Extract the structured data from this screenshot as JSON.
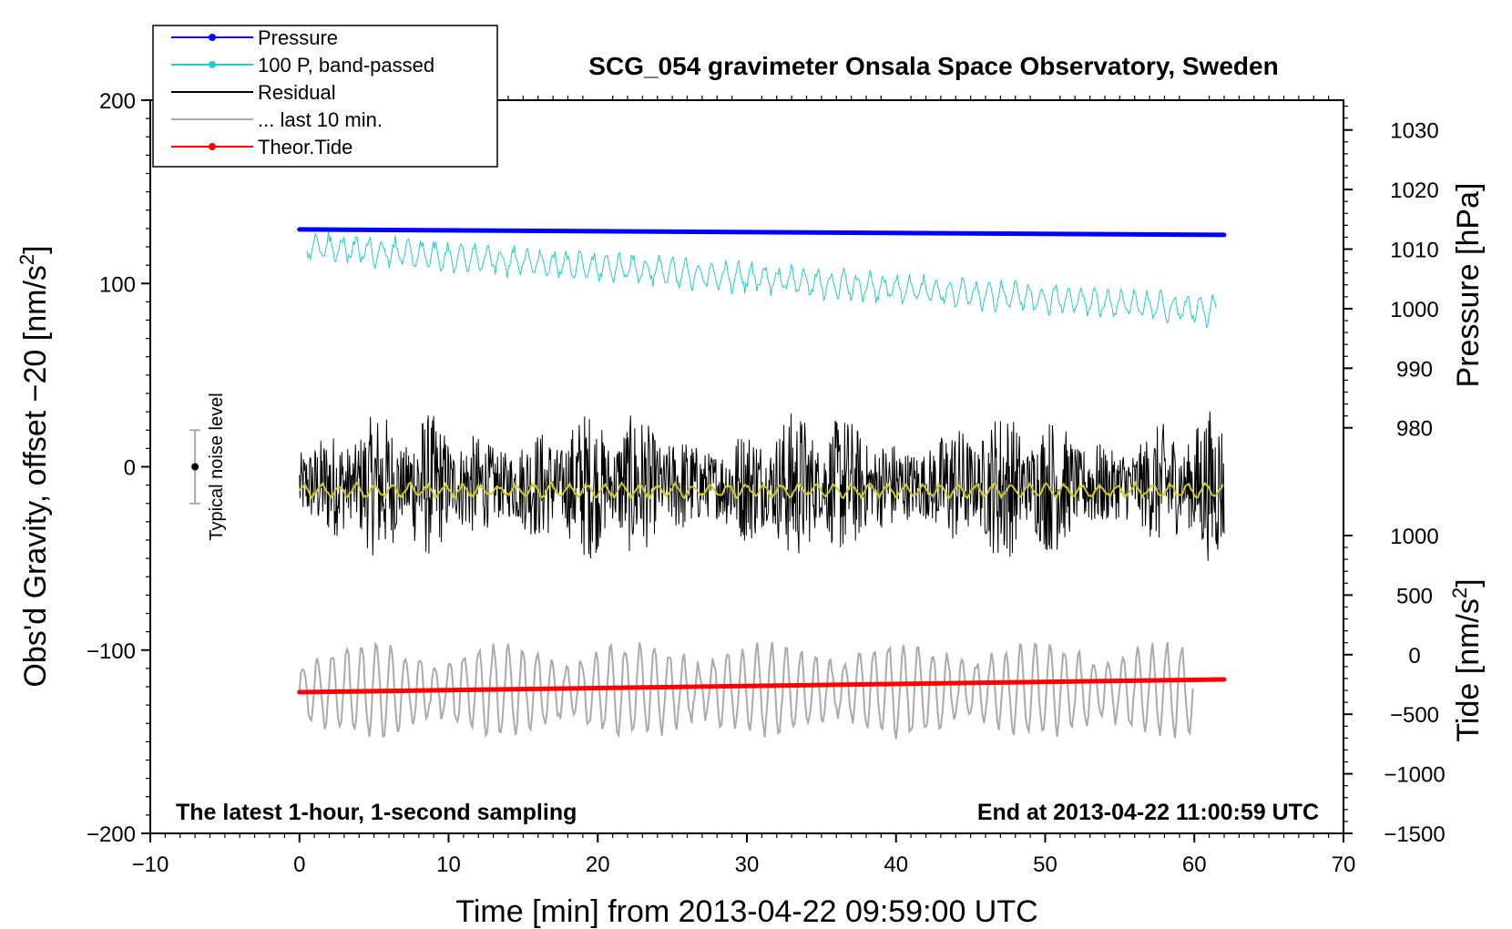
{
  "chart_data": {
    "type": "line",
    "title": "SCG_054 gravimeter Onsala Space Observatory, Sweden",
    "xlabel": "Time [min] from 2013-04-22 09:59:00 UTC",
    "ylabel_left": "Obs'd Gravity, offset −20 [nm/s",
    "ylabel_left_sup": "2",
    "ylabel_left_close": "]",
    "ylabel_pressure": "Pressure [hPa]",
    "ylabel_tide": "Tide [nm/s",
    "ylabel_tide_sup": "2",
    "ylabel_tide_close": "]",
    "xlim": [
      -10,
      70
    ],
    "ylim": [
      -200,
      200
    ],
    "x_ticks": [
      -10,
      0,
      10,
      20,
      30,
      40,
      50,
      60,
      70
    ],
    "x_tick_labels": [
      "−10",
      "0",
      "10",
      "20",
      "30",
      "40",
      "50",
      "60",
      "70"
    ],
    "y_ticks": [
      200,
      100,
      0,
      -100,
      -200
    ],
    "y_tick_labels": [
      "200",
      "100",
      "0",
      "−100",
      "−200"
    ],
    "pressure_axis": {
      "ticks": [
        1030,
        1020,
        1010,
        1000,
        990,
        980
      ],
      "tick_labels": [
        "1030",
        "1020",
        "1010",
        "1000",
        "990",
        "980"
      ],
      "top_value": 1035,
      "top_at_y": 200,
      "units_per_gravity": 0.30769
    },
    "tide_axis": {
      "ticks": [
        1000,
        500,
        0,
        -500,
        -1000,
        -1500
      ],
      "tick_labels": [
        "1000",
        "500",
        "0",
        "−500",
        "−1000",
        "−1500"
      ],
      "bottom_value": -1500,
      "bottom_at_y": -200,
      "units_per_gravity": 15.385
    },
    "annotations": {
      "left_bottom": "The latest 1-hour, 1-second sampling",
      "right_bottom": "End at 2013-04-22 11:00:59 UTC",
      "noise_label": "Typical noise level",
      "noise_bar": {
        "x": -7,
        "center": 0,
        "half_range": 20
      }
    },
    "legend": [
      {
        "label": "Pressure",
        "color": "#0000ff",
        "marker": true
      },
      {
        "label": "100 P, band-passed",
        "color": "#22cccc",
        "marker": true
      },
      {
        "label": "Residual",
        "color": "#000000",
        "marker": false
      },
      {
        "label": "... last 10 min.",
        "color": "#aaaaaa",
        "marker": false
      },
      {
        "label": "Theor.Tide",
        "color": "#ff0000",
        "marker": true
      }
    ],
    "series": [
      {
        "name": "Pressure",
        "color": "#0000ff",
        "x_start": 0,
        "x_end": 62,
        "y_start": 129.5,
        "y_end": 126.5
      },
      {
        "name": "100 P, band-passed",
        "color": "#22cccc",
        "x_start": 0.5,
        "x_end": 61.5,
        "y_start": 120,
        "y_end": 85,
        "noise_amp": 7
      },
      {
        "name": "Residual",
        "color": "#000000",
        "x_start": 0,
        "x_end": 62,
        "center": -10,
        "noise_amp": 30
      },
      {
        "name": "Residual smoothed",
        "color": "#cccc22",
        "x_start": 0,
        "x_end": 62,
        "center": -13,
        "noise_amp": 3
      },
      {
        "name": "... last 10 min.",
        "color": "#aaaaaa",
        "x_start": 0,
        "x_end": 60,
        "center": -122,
        "noise_amp": 22
      },
      {
        "name": "Theor.Tide",
        "color": "#ff0000",
        "x_start": 0,
        "x_end": 62,
        "y_start": -123,
        "y_end": -116
      }
    ]
  }
}
